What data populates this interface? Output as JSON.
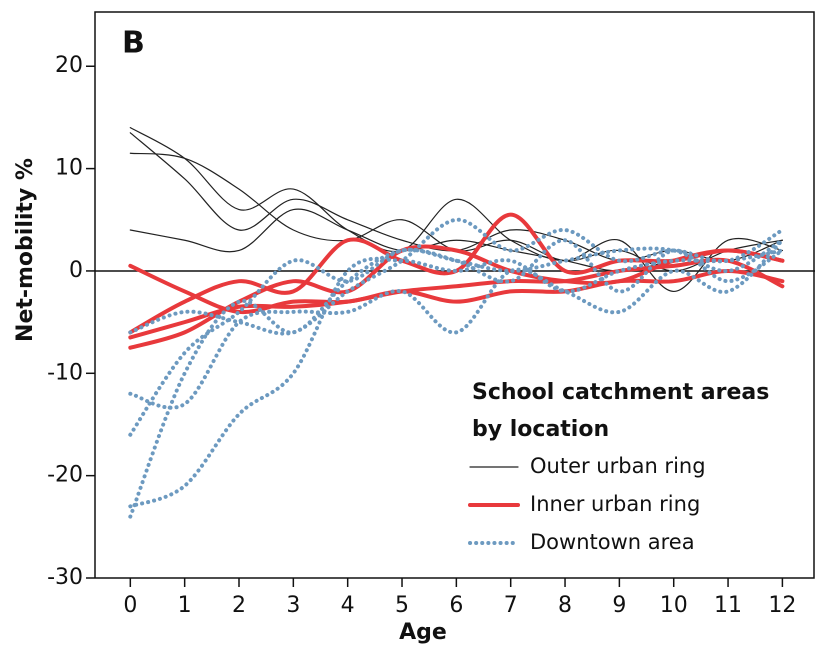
{
  "chart_data": {
    "type": "line",
    "panel_label": "B",
    "x_label": "Age",
    "y_label": "Net-mobility %",
    "legend_title": [
      "School catchment areas",
      "by location"
    ],
    "x": [
      0,
      1,
      2,
      3,
      4,
      5,
      6,
      7,
      8,
      9,
      10,
      11,
      12
    ],
    "xlim": [
      -0.65,
      12.6
    ],
    "xticks": [
      0,
      1,
      2,
      3,
      4,
      5,
      6,
      7,
      8,
      9,
      10,
      11,
      12
    ],
    "ylim": [
      -30,
      25.3
    ],
    "yticks": [
      -30,
      -20,
      -10,
      0,
      10,
      20
    ],
    "reference_line": 0,
    "series": [
      {
        "name": "Outer urban ring",
        "color": "#222222",
        "style": "solid",
        "width": 1.2,
        "lines": [
          [
            14,
            11,
            6,
            8,
            4,
            2,
            7,
            3,
            1,
            3,
            -2,
            3,
            2
          ],
          [
            13.5,
            9,
            4,
            7,
            5,
            3,
            2,
            4,
            3,
            1,
            2,
            1,
            3
          ],
          [
            11.5,
            11,
            8,
            4,
            3,
            5,
            2,
            3,
            1,
            2,
            0,
            2,
            3
          ],
          [
            4,
            3,
            2,
            6,
            4,
            2,
            3,
            2,
            1,
            0,
            1,
            2,
            1
          ]
        ]
      },
      {
        "name": "Inner urban ring",
        "color": "#e8393c",
        "style": "solid",
        "width": 4,
        "lines": [
          [
            0.5,
            -2,
            -4,
            -3,
            -3,
            -2,
            -3,
            -2,
            -2,
            -1,
            -1,
            0,
            -1
          ],
          [
            -6,
            -3,
            -1,
            -2,
            3,
            1,
            0,
            5.5,
            0,
            1,
            1,
            2,
            1
          ],
          [
            -7.5,
            -6,
            -3,
            -1,
            -2,
            2,
            2,
            0,
            -1,
            -1,
            1,
            2,
            1
          ],
          [
            -6.5,
            -5,
            -3.5,
            -3.5,
            -3,
            -2,
            -1.5,
            -1,
            -1,
            0,
            0.5,
            1,
            -1.5
          ]
        ]
      },
      {
        "name": "Downtown area",
        "color": "#6d9ac0",
        "style": "dotted",
        "width": 4,
        "lines": [
          [
            -6,
            -4,
            -5,
            -6,
            -2,
            1,
            5,
            2,
            4,
            1,
            2,
            1,
            4
          ],
          [
            -12,
            -13,
            -5,
            -4,
            -4,
            -2,
            -6,
            0,
            -2,
            -4,
            0,
            -2,
            3
          ],
          [
            -16,
            -8,
            -4,
            1,
            -1,
            2,
            1,
            -1,
            3,
            -2,
            2,
            -1,
            2
          ],
          [
            -23,
            -21,
            -14,
            -10,
            0,
            1,
            0,
            1,
            -2,
            0,
            1,
            1,
            2
          ],
          [
            -24,
            -10,
            -3,
            -6,
            -1,
            2,
            1,
            0,
            1,
            2,
            2,
            0,
            3
          ]
        ]
      }
    ]
  }
}
